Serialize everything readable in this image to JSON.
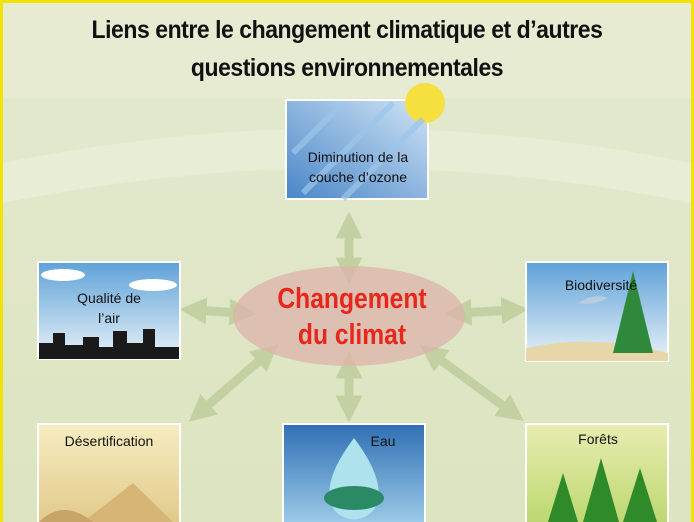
{
  "title": "Liens entre le changement climatique et d’autres questions environnementales",
  "center": "Changement du climat",
  "nodes": [
    {
      "label": "Diminution de la couche d’ozone"
    },
    {
      "label": "Qualité de l’air"
    },
    {
      "label": "Biodiversité"
    },
    {
      "label": "Désertification"
    },
    {
      "label": "Eau"
    },
    {
      "label": "Forêts"
    }
  ]
}
